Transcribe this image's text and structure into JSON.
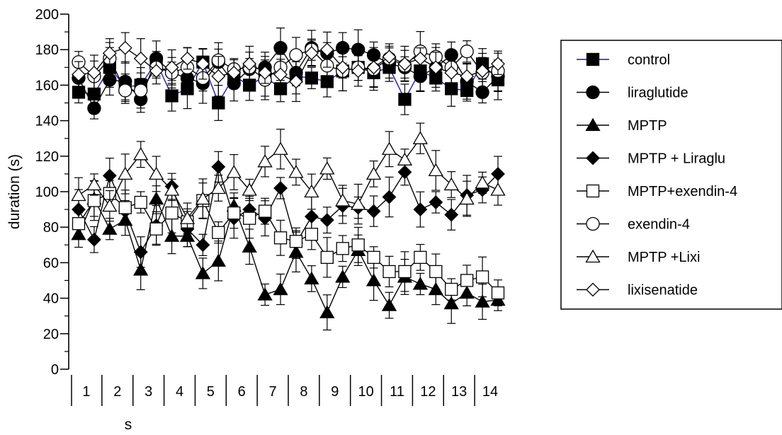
{
  "chart_data": {
    "type": "line",
    "title": "",
    "xlabel": "s",
    "ylabel": "duration (s)",
    "ylim": [
      0,
      200
    ],
    "yticks": [
      0,
      20,
      40,
      60,
      80,
      100,
      120,
      140,
      160,
      180,
      200
    ],
    "x": [
      1,
      1.5,
      2,
      2.5,
      3,
      3.5,
      4,
      4.5,
      5,
      5.5,
      6,
      6.5,
      7,
      7.5,
      8,
      8.5,
      9,
      9.5,
      10,
      10.5,
      11,
      11.5,
      12,
      12.5,
      13,
      13.5,
      14,
      14.5
    ],
    "x_categories": [
      "1",
      "2",
      "3",
      "4",
      "5",
      "6",
      "7",
      "8",
      "9",
      "10",
      "11",
      "12",
      "13",
      "14"
    ],
    "grid": false,
    "legend_position": "right",
    "error_bars": true,
    "series": [
      {
        "name": "control",
        "marker": "filled-square",
        "color": "#1a1aa8",
        "values": [
          156,
          155,
          170,
          159,
          160,
          173,
          154,
          158,
          173,
          150,
          165,
          160,
          165,
          158,
          165,
          164,
          162,
          168,
          170,
          167,
          170,
          152,
          168,
          164,
          158,
          157,
          172,
          163
        ]
      },
      {
        "name": "liraglutide",
        "marker": "filled-circle",
        "color": "#000000",
        "values": [
          164,
          147,
          163,
          162,
          152,
          175,
          167,
          164,
          161,
          173,
          161,
          169,
          170,
          181,
          167,
          181,
          178,
          181,
          180,
          177,
          172,
          170,
          165,
          170,
          177,
          162,
          156,
          165
        ]
      },
      {
        "name": "MPTP",
        "marker": "filled-triangle",
        "color": "#000000",
        "values": [
          76,
          96,
          79,
          84,
          56,
          96,
          75,
          75,
          54,
          61,
          92,
          69,
          42,
          45,
          66,
          51,
          32,
          52,
          67,
          50,
          36,
          52,
          48,
          45,
          37,
          43,
          38,
          39
        ]
      },
      {
        "name": "MPTP + Liraglu",
        "marker": "filled-diamond",
        "color": "#000000",
        "values": [
          90,
          73,
          109,
          89,
          66,
          81,
          103,
          79,
          70,
          114,
          85,
          90,
          85,
          102,
          71,
          86,
          84,
          92,
          91,
          89,
          97,
          111,
          90,
          94,
          87,
          98,
          101,
          110
        ]
      },
      {
        "name": "MPTP+exendin-4",
        "marker": "open-square",
        "color": "#000000",
        "values": [
          82,
          95,
          99,
          91,
          94,
          79,
          88,
          83,
          95,
          77,
          88,
          85,
          89,
          74,
          72,
          76,
          63,
          68,
          70,
          63,
          55,
          55,
          63,
          55,
          45,
          50,
          52,
          43
        ]
      },
      {
        "name": "exendin-4",
        "marker": "open-circle",
        "color": "#000000",
        "values": [
          173,
          165,
          175,
          157,
          157,
          170,
          167,
          170,
          164,
          174,
          169,
          170,
          163,
          170,
          177,
          180,
          171,
          168,
          170,
          169,
          175,
          171,
          179,
          176,
          170,
          179,
          167,
          168
        ]
      },
      {
        "name": "MPTP +Lixi",
        "marker": "open-triangle",
        "color": "#000000",
        "values": [
          98,
          104,
          92,
          110,
          121,
          110,
          101,
          85,
          96,
          102,
          111,
          101,
          117,
          124,
          111,
          100,
          113,
          95,
          93,
          110,
          124,
          118,
          130,
          112,
          104,
          96,
          105,
          101
        ]
      },
      {
        "name": "lixisenatide",
        "marker": "open-diamond",
        "color": "#000000",
        "values": [
          166,
          167,
          178,
          181,
          175,
          168,
          170,
          175,
          172,
          165,
          167,
          172,
          167,
          166,
          162,
          178,
          180,
          170,
          168,
          170,
          176,
          172,
          175,
          170,
          167,
          165,
          168,
          172
        ]
      }
    ]
  }
}
